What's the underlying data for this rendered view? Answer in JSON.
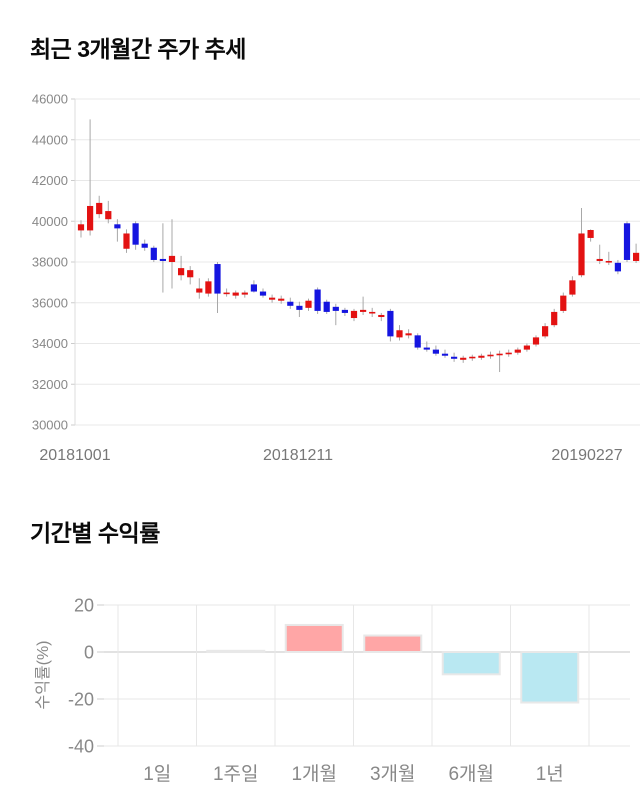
{
  "page": {
    "background": "#ffffff"
  },
  "price_chart": {
    "title": "최근 3개월간 주가 추세"
  },
  "returns_chart": {
    "title": "기간별 수익률"
  },
  "chart_data": [
    {
      "type": "candlestick",
      "title": "최근 3개월간 주가 추세",
      "x_tick_labels": [
        "20181001",
        "20181211",
        "20190227"
      ],
      "y_ticks": [
        46000,
        44000,
        42000,
        40000,
        38000,
        36000,
        34000,
        32000,
        30000
      ],
      "ylim": [
        30000,
        46000
      ],
      "grid": true,
      "up_color": "#e31212",
      "down_color": "#1515e0",
      "wick_color": "#a8a8a8",
      "candles_ohlc": [
        [
          39550,
          40050,
          39200,
          39850
        ],
        [
          39550,
          45000,
          39300,
          40750
        ],
        [
          40350,
          41250,
          40150,
          40900
        ],
        [
          40100,
          41000,
          39900,
          40500
        ],
        [
          39850,
          40100,
          39000,
          39650
        ],
        [
          38650,
          39600,
          38450,
          39400
        ],
        [
          39900,
          40000,
          38600,
          38850
        ],
        [
          38900,
          39100,
          38550,
          38700
        ],
        [
          38700,
          38800,
          38000,
          38100
        ],
        [
          38150,
          39900,
          36500,
          38050
        ],
        [
          38000,
          40100,
          36700,
          38300
        ],
        [
          37350,
          38300,
          37100,
          37700
        ],
        [
          37250,
          37800,
          36900,
          37600
        ],
        [
          36500,
          37200,
          36200,
          36700
        ],
        [
          36450,
          37200,
          36300,
          37050
        ],
        [
          37900,
          38000,
          35500,
          36450
        ],
        [
          36450,
          36700,
          36300,
          36500
        ],
        [
          36350,
          36600,
          36200,
          36500
        ],
        [
          36400,
          36600,
          36250,
          36500
        ],
        [
          36900,
          37100,
          36500,
          36550
        ],
        [
          36550,
          36700,
          36250,
          36350
        ],
        [
          36150,
          36400,
          36000,
          36250
        ],
        [
          36100,
          36350,
          35950,
          36200
        ],
        [
          36050,
          36250,
          35700,
          35850
        ],
        [
          35850,
          36050,
          35300,
          35650
        ],
        [
          35750,
          36200,
          35600,
          36100
        ],
        [
          36650,
          36750,
          35450,
          35600
        ],
        [
          36050,
          36150,
          35450,
          35550
        ],
        [
          35800,
          35950,
          34900,
          35600
        ],
        [
          35650,
          35750,
          35350,
          35500
        ],
        [
          35250,
          35700,
          35100,
          35600
        ],
        [
          35550,
          36300,
          35400,
          35650
        ],
        [
          35500,
          35750,
          35300,
          35550
        ],
        [
          35300,
          35500,
          35100,
          35400
        ],
        [
          35600,
          35700,
          34100,
          34350
        ],
        [
          34300,
          34900,
          34150,
          34650
        ],
        [
          34400,
          34700,
          34250,
          34500
        ],
        [
          34400,
          34500,
          33700,
          33800
        ],
        [
          33800,
          34100,
          33600,
          33700
        ],
        [
          33700,
          33900,
          33400,
          33500
        ],
        [
          33500,
          33700,
          33300,
          33400
        ],
        [
          33350,
          33550,
          33100,
          33250
        ],
        [
          33200,
          33400,
          33050,
          33300
        ],
        [
          33300,
          33450,
          33150,
          33350
        ],
        [
          33300,
          33500,
          33200,
          33400
        ],
        [
          33400,
          33600,
          33250,
          33450
        ],
        [
          33450,
          33650,
          32600,
          33500
        ],
        [
          33500,
          33700,
          33350,
          33550
        ],
        [
          33550,
          33800,
          33450,
          33700
        ],
        [
          33700,
          34000,
          33600,
          33900
        ],
        [
          33950,
          34400,
          33850,
          34300
        ],
        [
          34350,
          35000,
          34250,
          34850
        ],
        [
          34900,
          35700,
          34800,
          35550
        ],
        [
          35600,
          36500,
          35500,
          36350
        ],
        [
          36400,
          37300,
          36300,
          37100
        ],
        [
          37350,
          40650,
          37250,
          39400
        ],
        [
          39180,
          39600,
          39000,
          39570
        ],
        [
          38050,
          38850,
          37900,
          38150
        ],
        [
          38000,
          38500,
          37850,
          38050
        ],
        [
          37960,
          38100,
          37400,
          37540
        ],
        [
          39900,
          40000,
          38000,
          38100
        ],
        [
          38050,
          38900,
          37950,
          38450
        ]
      ]
    },
    {
      "type": "bar",
      "title": "기간별 수익률",
      "categories": [
        "1일",
        "1주일",
        "1개월",
        "3개월",
        "6개월",
        "1년"
      ],
      "values": [
        0,
        0.5,
        11.5,
        7,
        -9.5,
        -21.5
      ],
      "ylabel": "수익률(%)",
      "y_ticks": [
        20,
        0,
        -20,
        -40
      ],
      "ylim": [
        -40,
        20
      ],
      "grid": true,
      "legend": "none",
      "positive_color": "#ffa6a6",
      "negative_color": "#b9e8f2",
      "bar_border": "#e8e8e8",
      "zero_line_color": "#c6c6c6",
      "grid_color": "#e7e7e7",
      "tick_label_color": "#888888"
    }
  ]
}
